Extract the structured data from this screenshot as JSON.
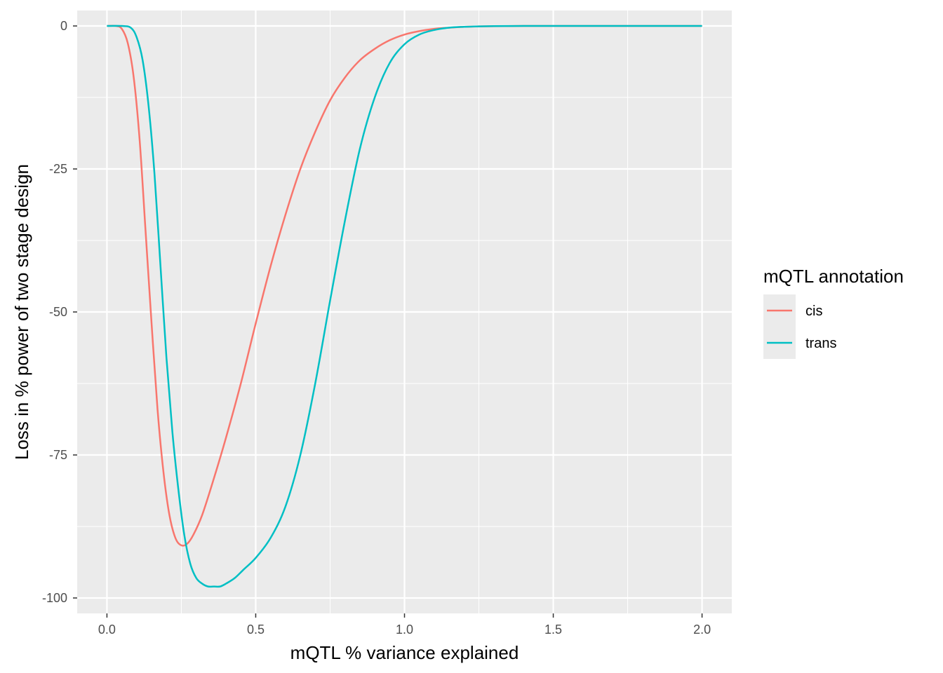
{
  "chart_data": {
    "type": "line",
    "xlabel": "mQTL % variance explained",
    "ylabel": "Loss in % power of two stage design",
    "xlim": [
      -0.1,
      2.1
    ],
    "ylim": [
      -102.7,
      2.7
    ],
    "x_ticks": [
      0.0,
      0.5,
      1.0,
      1.5,
      2.0
    ],
    "x_tick_labels": [
      "0.0",
      "0.5",
      "1.0",
      "1.5",
      "2.0"
    ],
    "y_ticks": [
      0,
      -25,
      -50,
      -75,
      -100
    ],
    "y_tick_labels": [
      "0",
      "-25",
      "-50",
      "-75",
      "-100"
    ],
    "grid": true,
    "legend": {
      "title": "mQTL annotation",
      "position": "right"
    },
    "series": [
      {
        "name": "cis",
        "color": "#F8766D",
        "x": [
          0.0,
          0.03,
          0.05,
          0.07,
          0.09,
          0.11,
          0.13,
          0.15,
          0.17,
          0.19,
          0.21,
          0.23,
          0.25,
          0.27,
          0.29,
          0.32,
          0.36,
          0.4,
          0.45,
          0.5,
          0.55,
          0.6,
          0.65,
          0.7,
          0.75,
          0.8,
          0.85,
          0.9,
          0.95,
          1.0,
          1.05,
          1.1,
          1.15,
          1.2,
          1.25,
          1.3,
          1.35,
          1.4,
          1.5,
          1.6,
          1.8,
          2.0
        ],
        "y": [
          0,
          0,
          -0.5,
          -3,
          -9,
          -20,
          -36,
          -52,
          -67,
          -78,
          -85.5,
          -89.5,
          -90.8,
          -90.5,
          -89,
          -85.5,
          -79,
          -72,
          -62.5,
          -52,
          -42,
          -33,
          -25,
          -18.5,
          -13,
          -9,
          -6,
          -4,
          -2.5,
          -1.5,
          -0.9,
          -0.5,
          -0.3,
          -0.15,
          -0.08,
          -0.04,
          -0.02,
          0,
          0,
          0,
          0,
          0
        ]
      },
      {
        "name": "trans",
        "color": "#00BFC4",
        "x": [
          0.0,
          0.05,
          0.08,
          0.1,
          0.12,
          0.14,
          0.16,
          0.18,
          0.2,
          0.22,
          0.24,
          0.26,
          0.28,
          0.3,
          0.32,
          0.34,
          0.36,
          0.38,
          0.4,
          0.43,
          0.46,
          0.5,
          0.55,
          0.6,
          0.65,
          0.7,
          0.75,
          0.8,
          0.85,
          0.9,
          0.95,
          1.0,
          1.05,
          1.1,
          1.15,
          1.2,
          1.25,
          1.3,
          1.35,
          1.4,
          1.5,
          1.6,
          1.8,
          2.0
        ],
        "y": [
          0,
          0,
          -0.3,
          -2,
          -6,
          -14,
          -26,
          -42,
          -58,
          -71,
          -81,
          -89,
          -94,
          -96.5,
          -97.5,
          -98,
          -98,
          -98,
          -97.5,
          -96.5,
          -95,
          -93,
          -89.5,
          -84,
          -75,
          -62.5,
          -48,
          -34,
          -21.5,
          -12.5,
          -6.5,
          -3.2,
          -1.5,
          -0.7,
          -0.3,
          -0.15,
          -0.07,
          -0.03,
          -0.01,
          0,
          0,
          0,
          0,
          0
        ]
      }
    ]
  }
}
